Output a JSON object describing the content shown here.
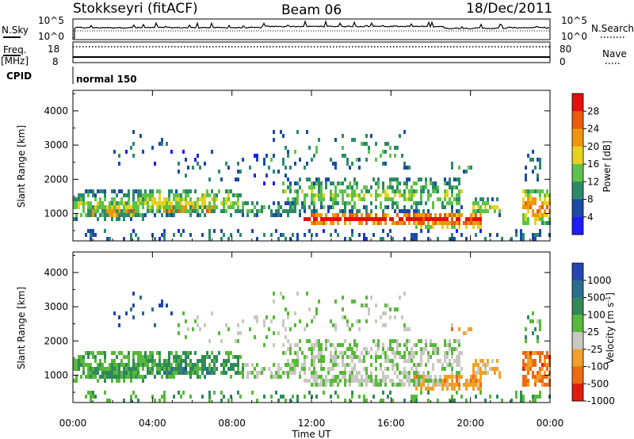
{
  "header": {
    "station": "Stokkseyri (fitACF)",
    "beam": "Beam 06",
    "date": "18/Dec/2011"
  },
  "panel_labels": {
    "nsky": "N.Sky",
    "nsearch": "N.Search",
    "freq": "Freq.",
    "freq_unit": "[MHz]",
    "nave": "Nave",
    "cpid": "CPID",
    "cpid_value": "normal 150",
    "nsky_ticks": [
      "10^5",
      "10^0"
    ],
    "nsearch_ticks": [
      "10^5",
      "10^0"
    ],
    "freq_ticks": [
      "18",
      "8"
    ],
    "nave_ticks": [
      "80",
      "0"
    ]
  },
  "colors": {
    "power_scale": [
      "#1d1dff",
      "#1a4aa8",
      "#2a8a6a",
      "#5ec24a",
      "#e6d21e",
      "#f0960e",
      "#ec5a0a",
      "#e60f0f"
    ],
    "velocity_scale": [
      "#2446b0",
      "#2b6e8e",
      "#2f8a5a",
      "#58b83a",
      "#c8c8c0",
      "#f2a028",
      "#ee6a12",
      "#e01c0c"
    ]
  },
  "chart_data": [
    {
      "type": "heatmap",
      "title": "Power",
      "ylabel": "Slant Range [km]",
      "xlabel": "",
      "x_ticks": [
        "00:00",
        "04:00",
        "08:00",
        "12:00",
        "16:00",
        "20:00",
        "00:00"
      ],
      "y_ticks": [
        1000,
        2000,
        3000,
        4000
      ],
      "ylim": [
        200,
        4600
      ],
      "colorbar": {
        "label": "Power [dB]",
        "ticks": [
          "4",
          "8",
          "12",
          "16",
          "20",
          "24",
          "28"
        ]
      }
    },
    {
      "type": "heatmap",
      "title": "Velocity",
      "ylabel": "Slant Range [km]",
      "xlabel": "Time UT",
      "x_ticks": [
        "00:00",
        "04:00",
        "08:00",
        "12:00",
        "16:00",
        "20:00",
        "00:00"
      ],
      "y_ticks": [
        1000,
        2000,
        3000,
        4000
      ],
      "ylim": [
        200,
        4600
      ],
      "colorbar": {
        "label": "Velocity [m s-1]",
        "label_main": "Velocity [m s",
        "label_sup": "-1",
        "label_tail": "]",
        "ticks": [
          "1000",
          "500",
          "100",
          "25",
          "-25",
          "-100",
          "-500",
          "-1000"
        ]
      }
    }
  ]
}
